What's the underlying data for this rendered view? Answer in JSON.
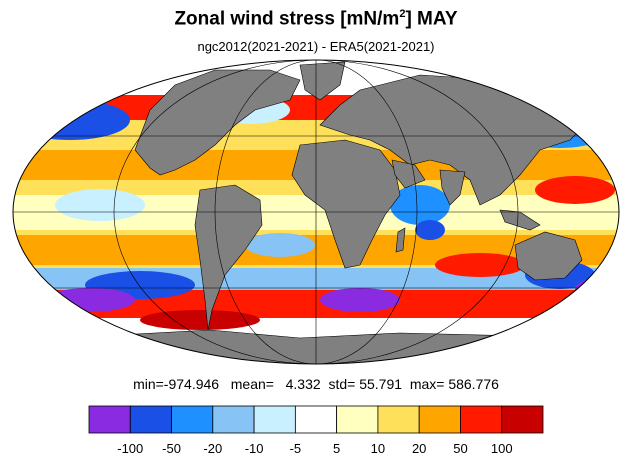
{
  "header": {
    "title_main": "Zonal wind stress [mN/m",
    "title_sup": "2",
    "title_tail": "] MAY",
    "subtitle": "ngc2012(2021-2021) - ERA5(2021-2021)"
  },
  "stats": {
    "min_label": "min=",
    "min": "-974.946",
    "mean_label": "mean=",
    "mean": "4.332",
    "std_label": "std=",
    "std": "55.791",
    "max_label": "max=",
    "max": "586.776"
  },
  "colorbar": {
    "colors": [
      "#8a2be2",
      "#1a50e6",
      "#1e90ff",
      "#87c4f5",
      "#c8f0ff",
      "#ffffff",
      "#ffffc0",
      "#ffe05a",
      "#ffa500",
      "#ff1a00",
      "#c80000"
    ],
    "tick_labels": [
      "-100",
      "-50",
      "-20",
      "-10",
      "-5",
      "5",
      "10",
      "20",
      "50",
      "100"
    ]
  },
  "map": {
    "projection": "Mollweide",
    "land_color": "#808080",
    "background": "blue/white/yellow/red anomaly field"
  }
}
